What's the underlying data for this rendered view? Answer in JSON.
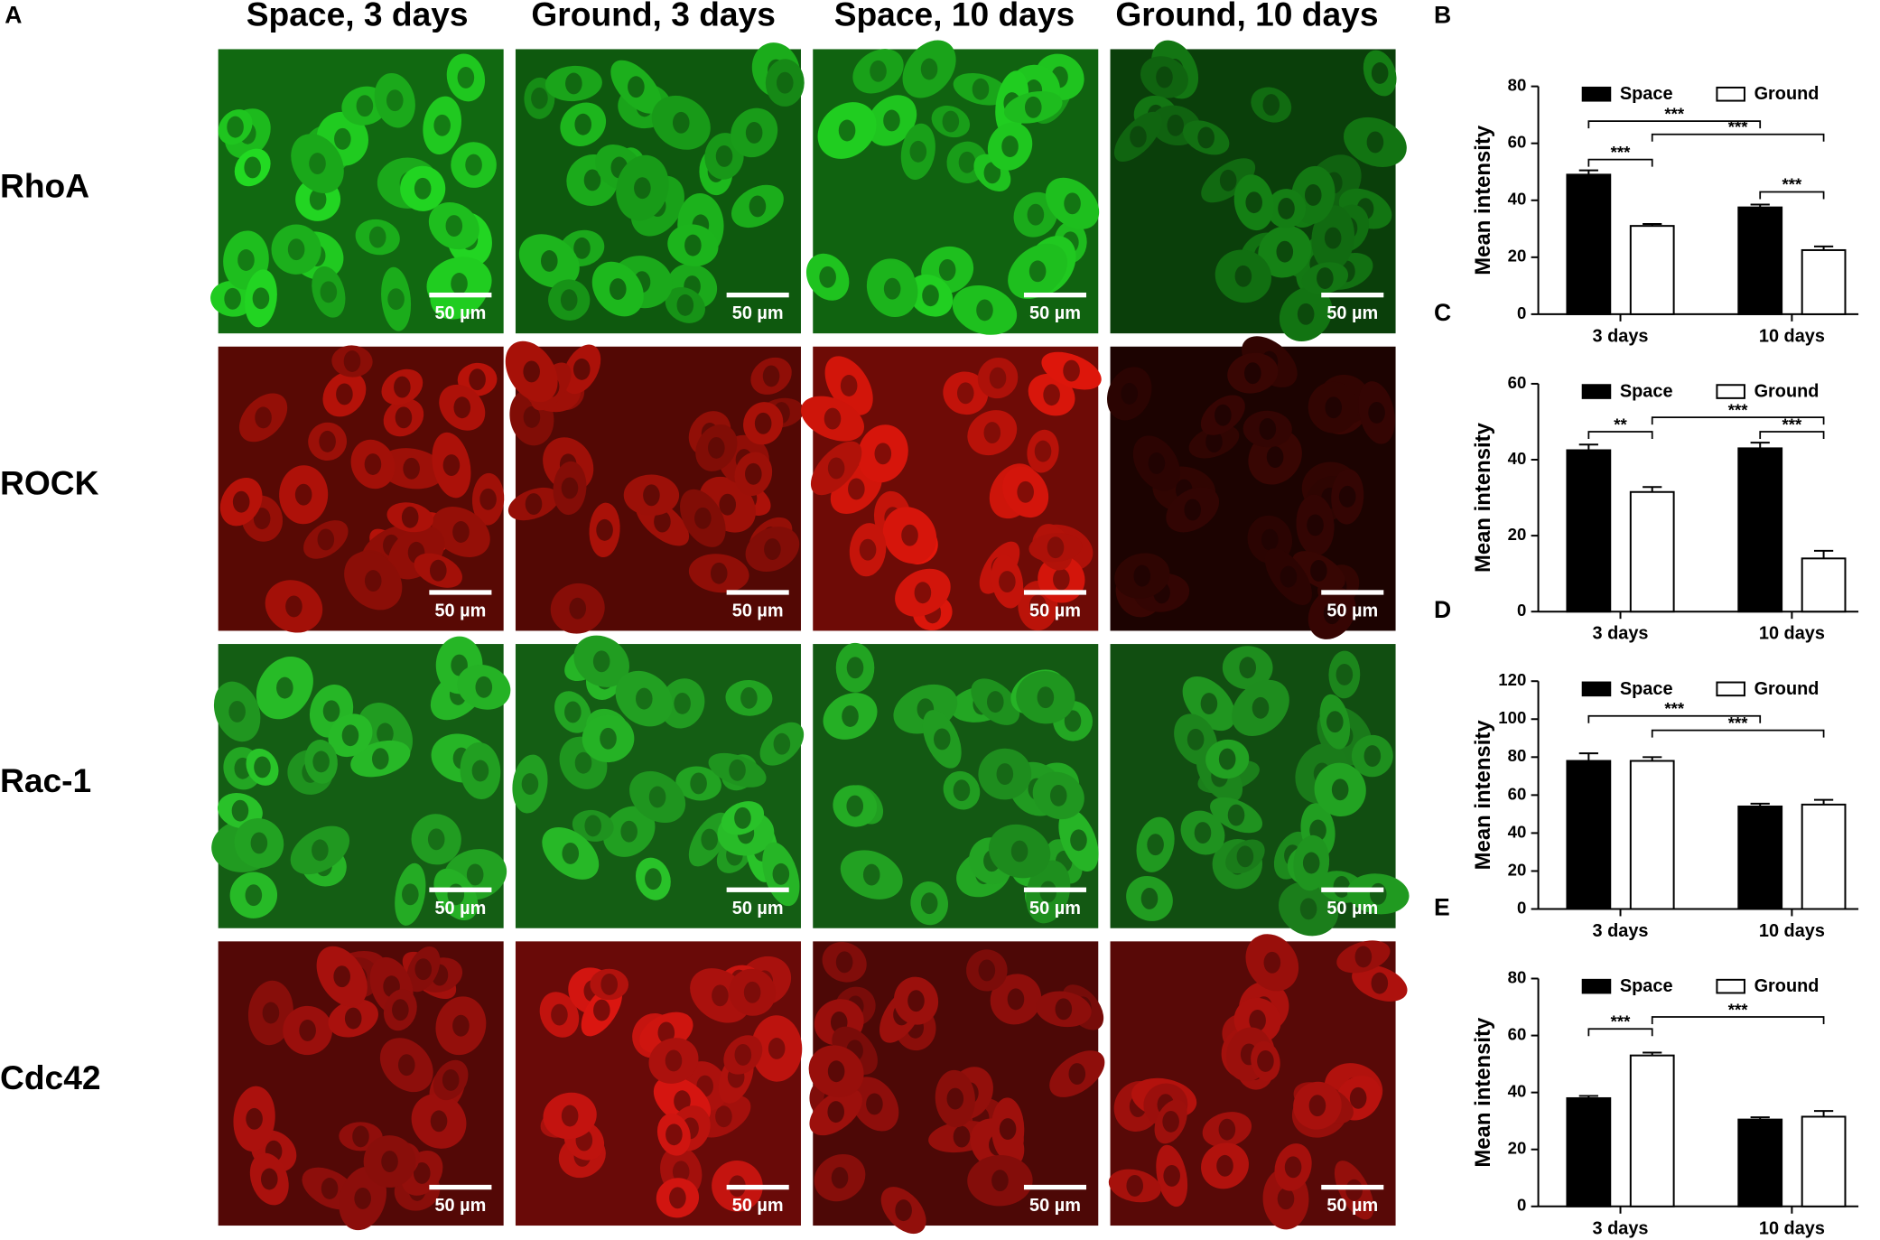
{
  "panel_label": "A",
  "column_headers": [
    "Space, 3 days",
    "Ground, 3 days",
    "Space, 10 days",
    "Ground, 10 days"
  ],
  "row_labels": [
    "RhoA",
    "ROCK",
    "Rac-1",
    "Cdc42"
  ],
  "scale_bar": "50 µm",
  "chart_data": [
    {
      "type": "bar",
      "panel": "B",
      "ylabel": "Mean intensity",
      "categories": [
        "3 days",
        "10 days"
      ],
      "series": [
        {
          "name": "Space",
          "color": "#000000",
          "values": [
            49,
            37.5
          ],
          "errors": [
            1.5,
            1
          ]
        },
        {
          "name": "Ground",
          "color": "#ffffff",
          "values": [
            31,
            22.5
          ],
          "errors": [
            0.7,
            1.3
          ]
        }
      ],
      "ylim": [
        0,
        80
      ],
      "yticks": [
        0,
        20,
        40,
        60,
        80
      ],
      "annotations": [
        "***",
        "***",
        "***",
        "***"
      ]
    },
    {
      "type": "bar",
      "panel": "C",
      "ylabel": "Mean intensity",
      "categories": [
        "3 days",
        "10 days"
      ],
      "series": [
        {
          "name": "Space",
          "color": "#000000",
          "values": [
            42.5,
            43
          ],
          "errors": [
            1.5,
            1.5
          ]
        },
        {
          "name": "Ground",
          "color": "#ffffff",
          "values": [
            31.5,
            14
          ],
          "errors": [
            1.3,
            2
          ]
        }
      ],
      "ylim": [
        0,
        60
      ],
      "yticks": [
        0,
        20,
        40,
        60
      ],
      "annotations": [
        "**",
        "***",
        "***"
      ]
    },
    {
      "type": "bar",
      "panel": "D",
      "ylabel": "Mean intensity",
      "categories": [
        "3 days",
        "10 days"
      ],
      "series": [
        {
          "name": "Space",
          "color": "#000000",
          "values": [
            78,
            54
          ],
          "errors": [
            4,
            1.5
          ]
        },
        {
          "name": "Ground",
          "color": "#ffffff",
          "values": [
            78,
            55
          ],
          "errors": [
            2,
            2.5
          ]
        }
      ],
      "ylim": [
        0,
        120
      ],
      "yticks": [
        0,
        20,
        40,
        60,
        80,
        100,
        120
      ],
      "annotations": [
        "***",
        "***"
      ]
    },
    {
      "type": "bar",
      "panel": "E",
      "ylabel": "Mean intensity",
      "categories": [
        "3 days",
        "10 days"
      ],
      "series": [
        {
          "name": "Space",
          "color": "#000000",
          "values": [
            38,
            30.5
          ],
          "errors": [
            0.8,
            0.8
          ]
        },
        {
          "name": "Ground",
          "color": "#ffffff",
          "values": [
            53,
            31.5
          ],
          "errors": [
            1,
            2
          ]
        }
      ],
      "ylim": [
        0,
        80
      ],
      "yticks": [
        0,
        20,
        40,
        60,
        80
      ],
      "annotations": [
        "***",
        "***"
      ]
    }
  ]
}
